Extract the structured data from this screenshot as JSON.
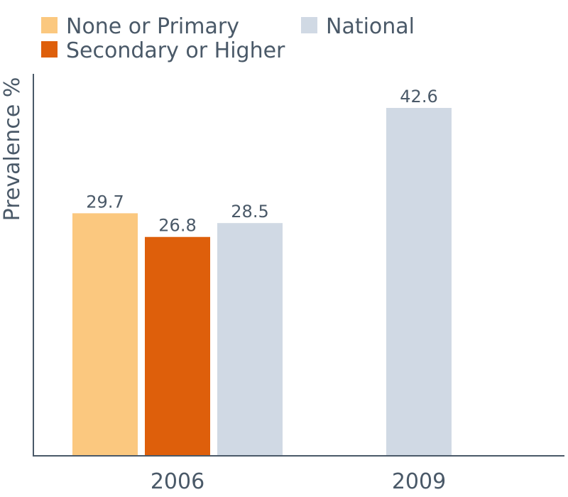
{
  "chart_data": {
    "type": "bar",
    "categories": [
      "2006",
      "2009"
    ],
    "series": [
      {
        "name": "None or Primary",
        "color": "#fbc87f",
        "values": [
          29.7,
          null
        ]
      },
      {
        "name": "Secondary or Higher",
        "color": "#de5f0b",
        "values": [
          26.8,
          null
        ]
      },
      {
        "name": "National",
        "color": "#d0d9e4",
        "values": [
          28.5,
          42.6
        ]
      }
    ],
    "title": "",
    "xlabel": "",
    "ylabel": "Prevalence %",
    "ylim": [
      0,
      46
    ],
    "grid": false,
    "legend_position": "top-left",
    "axis_color": "#4a5968",
    "text_color": "#4a5968"
  }
}
